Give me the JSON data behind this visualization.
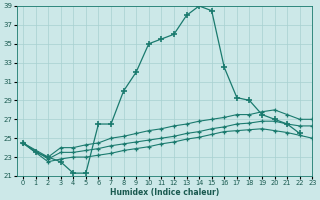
{
  "bg_color": "#cce8e8",
  "grid_color": "#a8d0d0",
  "line_color": "#1a7a6e",
  "xlabel": "Humidex (Indice chaleur)",
  "xlim": [
    -0.5,
    23
  ],
  "ylim": [
    21,
    39
  ],
  "xticks": [
    0,
    1,
    2,
    3,
    4,
    5,
    6,
    7,
    8,
    9,
    10,
    11,
    12,
    13,
    14,
    15,
    16,
    17,
    18,
    19,
    20,
    21,
    22,
    23
  ],
  "yticks": [
    21,
    23,
    25,
    27,
    29,
    31,
    33,
    35,
    37,
    39
  ],
  "main_x": [
    0,
    1,
    2,
    3,
    4,
    5,
    6,
    7,
    8,
    9,
    10,
    11,
    12,
    13,
    14,
    15,
    16,
    17,
    18,
    19,
    20,
    21,
    22
  ],
  "main_y": [
    24.5,
    23.5,
    23.0,
    22.5,
    21.3,
    21.3,
    26.5,
    26.5,
    30.0,
    32.0,
    35.0,
    35.5,
    36.0,
    38.0,
    39.0,
    38.5,
    32.5,
    29.3,
    29.0,
    27.5,
    27.0,
    26.5,
    25.5
  ],
  "l1_x": [
    0,
    2,
    3,
    4,
    5,
    6,
    7,
    8,
    9,
    10,
    11,
    12,
    13,
    14,
    15,
    16,
    17,
    18,
    19,
    20,
    21,
    22,
    23
  ],
  "l1_y": [
    24.5,
    23.0,
    24.0,
    24.0,
    24.3,
    24.5,
    25.0,
    25.2,
    25.5,
    25.8,
    26.0,
    26.3,
    26.5,
    26.8,
    27.0,
    27.2,
    27.5,
    27.5,
    27.8,
    28.0,
    27.5,
    27.0,
    27.0
  ],
  "l2_x": [
    0,
    2,
    3,
    4,
    5,
    6,
    7,
    8,
    9,
    10,
    11,
    12,
    13,
    14,
    15,
    16,
    17,
    18,
    19,
    20,
    21,
    22,
    23
  ],
  "l2_y": [
    24.5,
    22.8,
    23.5,
    23.5,
    23.7,
    23.9,
    24.2,
    24.4,
    24.6,
    24.8,
    25.0,
    25.2,
    25.5,
    25.7,
    26.0,
    26.2,
    26.5,
    26.6,
    26.8,
    26.8,
    26.5,
    26.3,
    26.3
  ],
  "l3_x": [
    0,
    2,
    3,
    4,
    5,
    6,
    7,
    8,
    9,
    10,
    11,
    12,
    13,
    14,
    15,
    16,
    17,
    18,
    19,
    20,
    21,
    22,
    23
  ],
  "l3_y": [
    24.5,
    22.5,
    22.8,
    23.0,
    23.0,
    23.2,
    23.4,
    23.7,
    23.9,
    24.1,
    24.4,
    24.6,
    24.9,
    25.1,
    25.4,
    25.7,
    25.8,
    25.9,
    26.0,
    25.8,
    25.6,
    25.3,
    25.0
  ]
}
